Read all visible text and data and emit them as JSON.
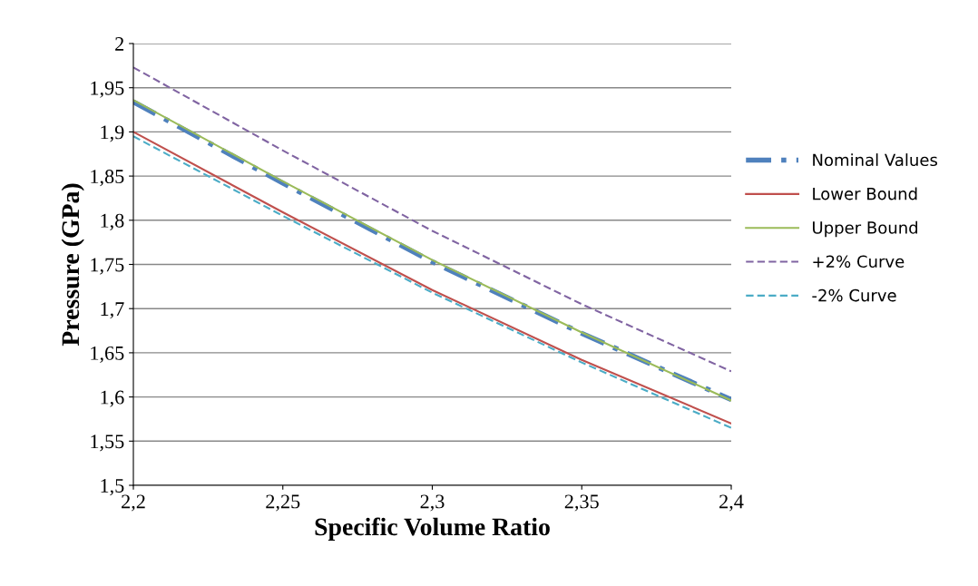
{
  "chart_data": {
    "type": "line",
    "xlabel": "Specific Volume Ratio",
    "ylabel": "Pressure (GPa)",
    "x": [
      2.2,
      2.25,
      2.3,
      2.35,
      2.4
    ],
    "series": [
      {
        "name": "Nominal Values",
        "color": "#4f81bd",
        "values": [
          1.934,
          1.842,
          1.753,
          1.672,
          1.597
        ],
        "line_style": "dashdot"
      },
      {
        "name": "Lower Bound",
        "color": "#c0504d",
        "values": [
          1.9,
          1.809,
          1.721,
          1.642,
          1.57
        ],
        "line_style": "solid"
      },
      {
        "name": "Upper Bound",
        "color": "#9bbb59",
        "values": [
          1.936,
          1.844,
          1.755,
          1.673,
          1.596
        ],
        "line_style": "solid"
      },
      {
        "name": "+2% Curve",
        "color": "#8064a2",
        "values": [
          1.973,
          1.879,
          1.788,
          1.705,
          1.629
        ],
        "line_style": "dashed"
      },
      {
        "name": "-2% Curve",
        "color": "#4bacc6",
        "values": [
          1.895,
          1.805,
          1.718,
          1.639,
          1.565
        ],
        "line_style": "dashed"
      }
    ],
    "xlim": [
      2.2,
      2.4
    ],
    "xticks": [
      {
        "value": 2.2,
        "label": "2,2"
      },
      {
        "value": 2.25,
        "label": "2,25"
      },
      {
        "value": 2.3,
        "label": "2,3"
      },
      {
        "value": 2.35,
        "label": "2,35"
      },
      {
        "value": 2.4,
        "label": "2,4"
      }
    ],
    "ylim": [
      1.5,
      2
    ],
    "yticks": [
      {
        "value": 1.5,
        "label": "1,5"
      },
      {
        "value": 1.55,
        "label": "1,55"
      },
      {
        "value": 1.6,
        "label": "1,6"
      },
      {
        "value": 1.65,
        "label": "1,65"
      },
      {
        "value": 1.7,
        "label": "1,7"
      },
      {
        "value": 1.75,
        "label": "1,75"
      },
      {
        "value": 1.8,
        "label": "1,8"
      },
      {
        "value": 1.85,
        "label": "1,85"
      },
      {
        "value": 1.9,
        "label": "1,9"
      },
      {
        "value": 1.95,
        "label": "1,95"
      },
      {
        "value": 2,
        "label": "2"
      }
    ],
    "grid": "y",
    "legend": "right",
    "marker": "none"
  }
}
